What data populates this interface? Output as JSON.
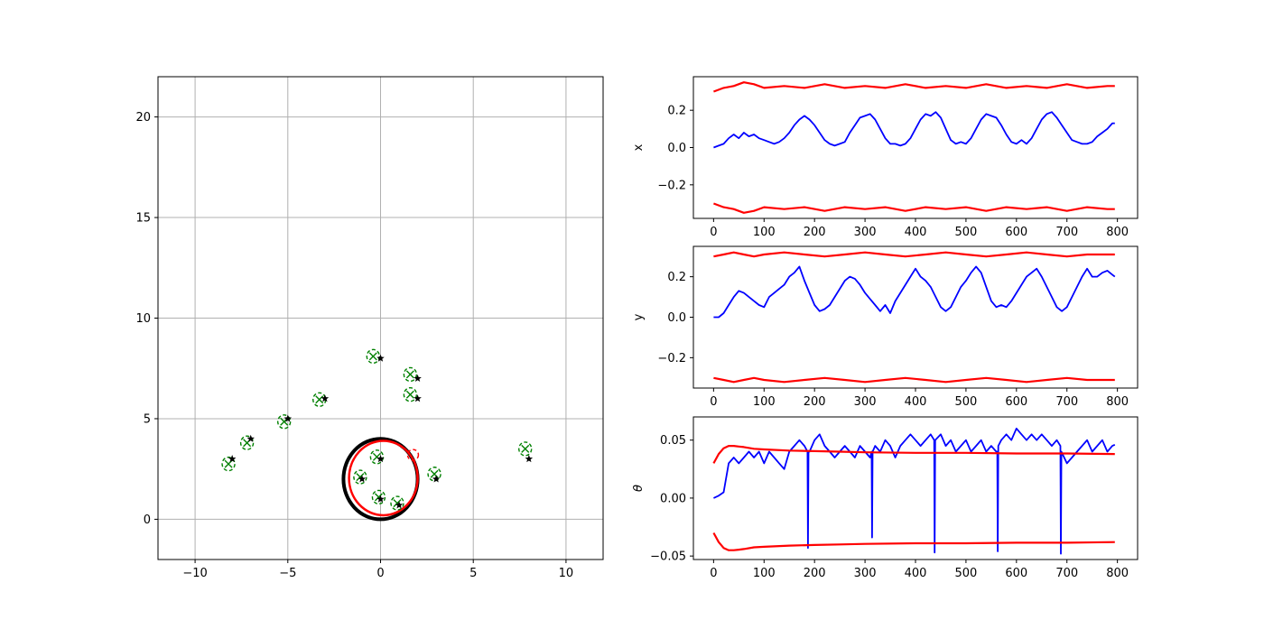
{
  "colors": {
    "estimate": "#0000ff",
    "bound": "#ff0000",
    "landmark_true": "#000000",
    "landmark_est": "#008000",
    "trajectory_true": "#000000",
    "trajectory_est": "#ff0000",
    "grid": "#b0b0b0"
  },
  "chart_data": [
    {
      "id": "map",
      "type": "scatter",
      "title": "",
      "xlabel": "",
      "ylabel": "",
      "xlim": [
        -12,
        12
      ],
      "ylim": [
        -2,
        22
      ],
      "xticks": [
        -10,
        -5,
        0,
        5,
        10
      ],
      "yticks": [
        0,
        5,
        10,
        15,
        20
      ],
      "grid": true,
      "landmarks_true": [
        [
          -8,
          3
        ],
        [
          -7,
          4
        ],
        [
          -5,
          5
        ],
        [
          -3,
          6
        ],
        [
          0,
          8
        ],
        [
          2,
          7
        ],
        [
          2,
          6
        ],
        [
          0,
          3
        ],
        [
          -1,
          2
        ],
        [
          0,
          1
        ],
        [
          1,
          0.7
        ],
        [
          3,
          2
        ],
        [
          8,
          3
        ]
      ],
      "landmarks_estimated": [
        [
          -8.2,
          2.75
        ],
        [
          -7.2,
          3.8
        ],
        [
          -5.2,
          4.85
        ],
        [
          -3.3,
          5.95
        ],
        [
          -0.4,
          8.1
        ],
        [
          1.6,
          7.2
        ],
        [
          1.6,
          6.2
        ],
        [
          -0.2,
          3.1
        ],
        [
          -1.1,
          2.1
        ],
        [
          -0.1,
          1.1
        ],
        [
          0.9,
          0.8
        ],
        [
          2.9,
          2.25
        ],
        [
          7.8,
          3.5
        ]
      ],
      "trajectory_true": {
        "type": "circle",
        "center": [
          0,
          2
        ],
        "radius": 2
      },
      "trajectory_estimated": {
        "type": "circle",
        "center": [
          0.15,
          2.05
        ],
        "radius": 1.85
      },
      "current_pose": [
        1.75,
        3.2
      ]
    },
    {
      "id": "x-error",
      "type": "line",
      "xlabel": "",
      "ylabel": "x",
      "xlim": [
        -40,
        840
      ],
      "ylim": [
        -0.38,
        0.38
      ],
      "xticks": [
        0,
        100,
        200,
        300,
        400,
        500,
        600,
        700,
        800
      ],
      "yticks": [
        -0.2,
        0.0,
        0.2
      ],
      "ytick_labels": [
        "−0.2",
        "0.0",
        "0.2"
      ],
      "series": [
        {
          "role": "error",
          "x": [
            0,
            10,
            20,
            30,
            40,
            50,
            60,
            70,
            80,
            90,
            100,
            110,
            120,
            130,
            140,
            150,
            160,
            170,
            180,
            190,
            200,
            210,
            220,
            230,
            240,
            250,
            260,
            270,
            280,
            290,
            300,
            310,
            320,
            330,
            340,
            350,
            360,
            370,
            380,
            390,
            400,
            410,
            420,
            430,
            440,
            450,
            460,
            470,
            480,
            490,
            500,
            510,
            520,
            530,
            540,
            550,
            560,
            570,
            580,
            590,
            600,
            610,
            620,
            630,
            640,
            650,
            660,
            670,
            680,
            690,
            700,
            710,
            720,
            730,
            740,
            750,
            760,
            770,
            780,
            790,
            795
          ],
          "y": [
            0.0,
            0.01,
            0.02,
            0.05,
            0.07,
            0.05,
            0.08,
            0.06,
            0.07,
            0.05,
            0.04,
            0.03,
            0.02,
            0.03,
            0.05,
            0.08,
            0.12,
            0.15,
            0.17,
            0.15,
            0.12,
            0.08,
            0.04,
            0.02,
            0.01,
            0.02,
            0.03,
            0.08,
            0.12,
            0.16,
            0.17,
            0.18,
            0.15,
            0.1,
            0.05,
            0.02,
            0.02,
            0.01,
            0.02,
            0.05,
            0.1,
            0.15,
            0.18,
            0.17,
            0.19,
            0.16,
            0.1,
            0.04,
            0.02,
            0.03,
            0.02,
            0.05,
            0.1,
            0.15,
            0.18,
            0.17,
            0.16,
            0.12,
            0.07,
            0.03,
            0.02,
            0.04,
            0.02,
            0.05,
            0.1,
            0.15,
            0.18,
            0.19,
            0.16,
            0.12,
            0.08,
            0.04,
            0.03,
            0.02,
            0.02,
            0.03,
            0.06,
            0.08,
            0.1,
            0.13,
            0.13
          ]
        },
        {
          "role": "upper-bound",
          "x": [
            0,
            20,
            40,
            60,
            80,
            100,
            140,
            180,
            220,
            260,
            300,
            340,
            380,
            420,
            460,
            500,
            540,
            580,
            620,
            660,
            700,
            740,
            780,
            795
          ],
          "y": [
            0.3,
            0.32,
            0.33,
            0.35,
            0.34,
            0.32,
            0.33,
            0.32,
            0.34,
            0.32,
            0.33,
            0.32,
            0.34,
            0.32,
            0.33,
            0.32,
            0.34,
            0.32,
            0.33,
            0.32,
            0.34,
            0.32,
            0.33,
            0.33
          ]
        },
        {
          "role": "lower-bound",
          "x": [
            0,
            20,
            40,
            60,
            80,
            100,
            140,
            180,
            220,
            260,
            300,
            340,
            380,
            420,
            460,
            500,
            540,
            580,
            620,
            660,
            700,
            740,
            780,
            795
          ],
          "y": [
            -0.3,
            -0.32,
            -0.33,
            -0.35,
            -0.34,
            -0.32,
            -0.33,
            -0.32,
            -0.34,
            -0.32,
            -0.33,
            -0.32,
            -0.34,
            -0.32,
            -0.33,
            -0.32,
            -0.34,
            -0.32,
            -0.33,
            -0.32,
            -0.34,
            -0.32,
            -0.33,
            -0.33
          ]
        }
      ]
    },
    {
      "id": "y-error",
      "type": "line",
      "xlabel": "",
      "ylabel": "y",
      "xlim": [
        -40,
        840
      ],
      "ylim": [
        -0.35,
        0.35
      ],
      "xticks": [
        0,
        100,
        200,
        300,
        400,
        500,
        600,
        700,
        800
      ],
      "yticks": [
        -0.2,
        0.0,
        0.2
      ],
      "ytick_labels": [
        "−0.2",
        "0.0",
        "0.2"
      ],
      "series": [
        {
          "role": "error",
          "x": [
            0,
            10,
            20,
            30,
            40,
            50,
            60,
            70,
            80,
            90,
            100,
            110,
            120,
            130,
            140,
            150,
            160,
            170,
            180,
            190,
            200,
            210,
            220,
            230,
            240,
            250,
            260,
            270,
            280,
            290,
            300,
            310,
            320,
            330,
            340,
            350,
            360,
            370,
            380,
            390,
            400,
            410,
            420,
            430,
            440,
            450,
            460,
            470,
            480,
            490,
            500,
            510,
            520,
            530,
            540,
            550,
            560,
            570,
            580,
            590,
            600,
            610,
            620,
            630,
            640,
            650,
            660,
            670,
            680,
            690,
            700,
            710,
            720,
            730,
            740,
            750,
            760,
            770,
            780,
            790,
            795
          ],
          "y": [
            0.0,
            0.0,
            0.02,
            0.06,
            0.1,
            0.13,
            0.12,
            0.1,
            0.08,
            0.06,
            0.05,
            0.1,
            0.12,
            0.14,
            0.16,
            0.2,
            0.22,
            0.25,
            0.18,
            0.12,
            0.06,
            0.03,
            0.04,
            0.06,
            0.1,
            0.14,
            0.18,
            0.2,
            0.19,
            0.16,
            0.12,
            0.09,
            0.06,
            0.03,
            0.06,
            0.02,
            0.08,
            0.12,
            0.16,
            0.2,
            0.24,
            0.2,
            0.18,
            0.15,
            0.1,
            0.05,
            0.03,
            0.05,
            0.1,
            0.15,
            0.18,
            0.22,
            0.25,
            0.22,
            0.15,
            0.08,
            0.05,
            0.06,
            0.05,
            0.08,
            0.12,
            0.16,
            0.2,
            0.22,
            0.24,
            0.2,
            0.15,
            0.1,
            0.05,
            0.03,
            0.05,
            0.1,
            0.15,
            0.2,
            0.24,
            0.2,
            0.2,
            0.22,
            0.23,
            0.21,
            0.2
          ]
        },
        {
          "role": "upper-bound",
          "x": [
            0,
            20,
            40,
            60,
            80,
            100,
            140,
            180,
            220,
            260,
            300,
            340,
            380,
            420,
            460,
            500,
            540,
            580,
            620,
            660,
            700,
            740,
            780,
            795
          ],
          "y": [
            0.3,
            0.31,
            0.32,
            0.31,
            0.3,
            0.31,
            0.32,
            0.31,
            0.3,
            0.31,
            0.32,
            0.31,
            0.3,
            0.31,
            0.32,
            0.31,
            0.3,
            0.31,
            0.32,
            0.31,
            0.3,
            0.31,
            0.31,
            0.31
          ]
        },
        {
          "role": "lower-bound",
          "x": [
            0,
            20,
            40,
            60,
            80,
            100,
            140,
            180,
            220,
            260,
            300,
            340,
            380,
            420,
            460,
            500,
            540,
            580,
            620,
            660,
            700,
            740,
            780,
            795
          ],
          "y": [
            -0.3,
            -0.31,
            -0.32,
            -0.31,
            -0.3,
            -0.31,
            -0.32,
            -0.31,
            -0.3,
            -0.31,
            -0.32,
            -0.31,
            -0.3,
            -0.31,
            -0.32,
            -0.31,
            -0.3,
            -0.31,
            -0.32,
            -0.31,
            -0.3,
            -0.31,
            -0.31,
            -0.31
          ]
        }
      ]
    },
    {
      "id": "theta-error",
      "type": "line",
      "xlabel": "",
      "ylabel": "θ",
      "xlim": [
        -40,
        840
      ],
      "ylim": [
        -0.053,
        0.07
      ],
      "xticks": [
        0,
        100,
        200,
        300,
        400,
        500,
        600,
        700,
        800
      ],
      "yticks": [
        -0.05,
        0.0,
        0.05
      ],
      "ytick_labels": [
        "−0.05",
        "0.00",
        "0.05"
      ],
      "series": [
        {
          "role": "error",
          "x": [
            0,
            10,
            20,
            30,
            40,
            50,
            60,
            70,
            80,
            90,
            100,
            110,
            120,
            130,
            140,
            150,
            160,
            170,
            180,
            186,
            187,
            188,
            190,
            200,
            210,
            220,
            230,
            240,
            250,
            260,
            270,
            280,
            290,
            300,
            310,
            313,
            314,
            315,
            320,
            330,
            340,
            350,
            360,
            370,
            380,
            390,
            400,
            410,
            420,
            430,
            437,
            438,
            439,
            450,
            460,
            470,
            480,
            490,
            500,
            510,
            520,
            530,
            540,
            550,
            560,
            562,
            563,
            564,
            570,
            580,
            590,
            600,
            610,
            620,
            630,
            640,
            650,
            660,
            670,
            680,
            687,
            688,
            689,
            700,
            710,
            720,
            730,
            740,
            750,
            760,
            770,
            780,
            790,
            795
          ],
          "y": [
            0.0,
            0.002,
            0.005,
            0.03,
            0.035,
            0.03,
            0.035,
            0.04,
            0.035,
            0.04,
            0.03,
            0.04,
            0.035,
            0.03,
            0.025,
            0.04,
            0.045,
            0.05,
            0.045,
            0.04,
            -0.043,
            0.04,
            0.04,
            0.05,
            0.055,
            0.045,
            0.04,
            0.035,
            0.04,
            0.045,
            0.04,
            0.035,
            0.045,
            0.04,
            0.035,
            0.04,
            -0.034,
            0.04,
            0.045,
            0.04,
            0.05,
            0.045,
            0.035,
            0.045,
            0.05,
            0.055,
            0.05,
            0.045,
            0.05,
            0.055,
            0.05,
            -0.047,
            0.05,
            0.055,
            0.045,
            0.05,
            0.04,
            0.045,
            0.05,
            0.04,
            0.045,
            0.05,
            0.04,
            0.045,
            0.04,
            0.04,
            -0.046,
            0.045,
            0.05,
            0.055,
            0.05,
            0.06,
            0.055,
            0.05,
            0.055,
            0.05,
            0.055,
            0.05,
            0.045,
            0.05,
            0.045,
            -0.048,
            0.04,
            0.03,
            0.035,
            0.04,
            0.045,
            0.05,
            0.04,
            0.045,
            0.05,
            0.04,
            0.045,
            0.046
          ]
        },
        {
          "role": "upper-bound",
          "x": [
            0,
            10,
            20,
            30,
            40,
            50,
            60,
            80,
            100,
            150,
            200,
            250,
            300,
            400,
            500,
            600,
            700,
            795
          ],
          "y": [
            0.03,
            0.038,
            0.043,
            0.045,
            0.045,
            0.0445,
            0.044,
            0.0425,
            0.042,
            0.041,
            0.0405,
            0.04,
            0.0395,
            0.039,
            0.039,
            0.0385,
            0.0385,
            0.038
          ]
        },
        {
          "role": "lower-bound",
          "x": [
            0,
            10,
            20,
            30,
            40,
            50,
            60,
            80,
            100,
            150,
            200,
            250,
            300,
            400,
            500,
            600,
            700,
            795
          ],
          "y": [
            -0.03,
            -0.038,
            -0.043,
            -0.045,
            -0.045,
            -0.0445,
            -0.044,
            -0.0425,
            -0.042,
            -0.041,
            -0.0405,
            -0.04,
            -0.0395,
            -0.039,
            -0.039,
            -0.0385,
            -0.0385,
            -0.038
          ]
        }
      ]
    }
  ]
}
